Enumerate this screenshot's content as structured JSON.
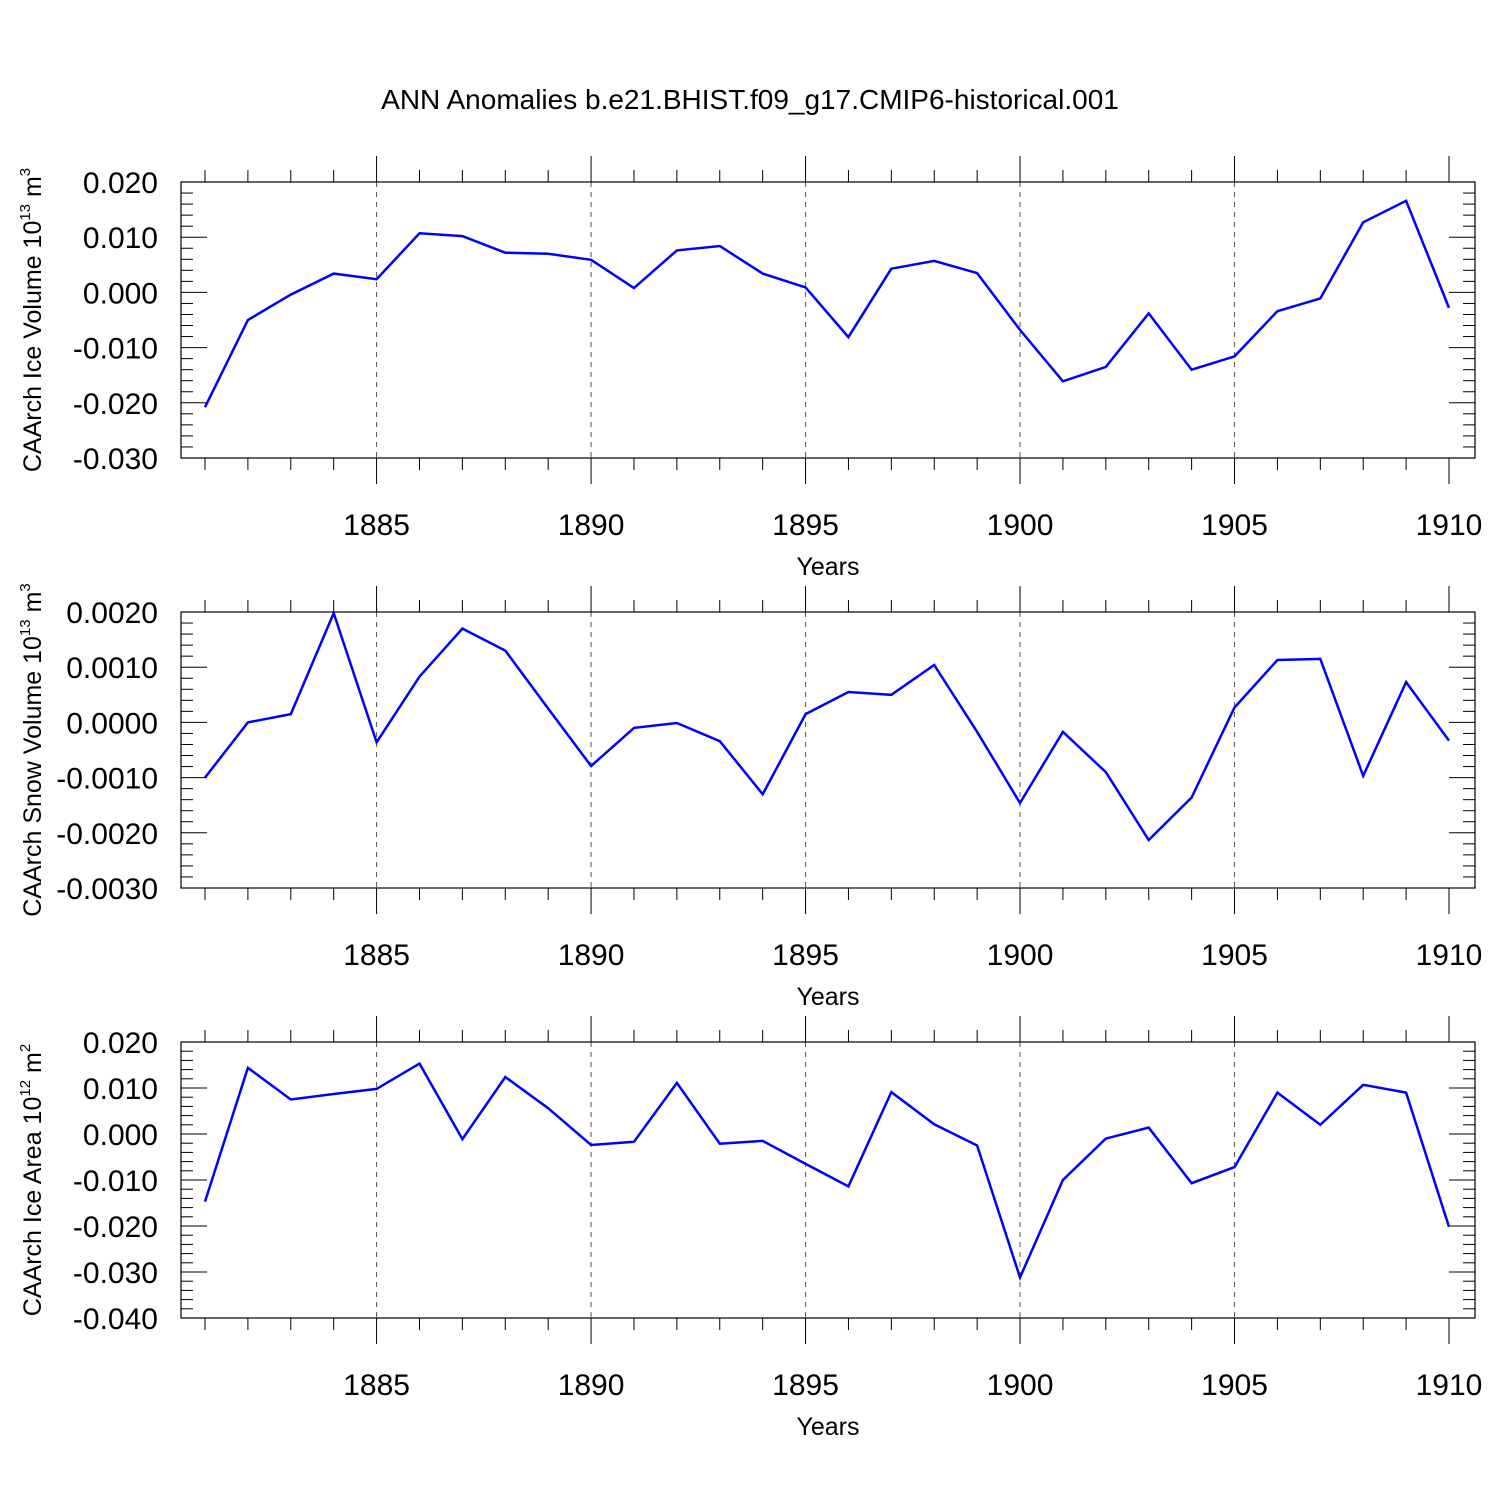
{
  "figure_title": "ANN Anomalies b.e21.BHIST.f09_g17.CMIP6-historical.001",
  "colors": {
    "series": "#0000ff",
    "axis": "#000000",
    "grid": "#555555"
  },
  "chart_data": [
    {
      "type": "line",
      "ylabel": "CAArch Ice Volume 10",
      "ylabel_sup": "13",
      "ylabel_unit": "m",
      "ylabel_unit_sup": "3",
      "xlabel": "Years",
      "xlim": [
        1881,
        1910
      ],
      "ylim": [
        -0.03,
        0.02
      ],
      "x_ticks": [
        1885,
        1890,
        1895,
        1900,
        1905,
        1910
      ],
      "y_ticks": [
        0.02,
        0.01,
        0.0,
        -0.01,
        -0.02,
        -0.03
      ],
      "y_tick_labels": [
        "0.020",
        "0.010",
        "0.000",
        "-0.010",
        "-0.020",
        "-0.030"
      ],
      "grid": "vertical dashed at major x ticks",
      "x": [
        1881,
        1882,
        1883,
        1884,
        1885,
        1886,
        1887,
        1888,
        1889,
        1890,
        1891,
        1892,
        1893,
        1894,
        1895,
        1896,
        1897,
        1898,
        1899,
        1900,
        1901,
        1902,
        1903,
        1904,
        1905,
        1906,
        1907,
        1908,
        1909,
        1910
      ],
      "values": [
        -0.0208,
        -0.005,
        -0.0004,
        0.0034,
        0.0024,
        0.0107,
        0.0102,
        0.0072,
        0.007,
        0.0059,
        0.0008,
        0.0076,
        0.0084,
        0.0034,
        0.0009,
        -0.0081,
        0.0043,
        0.0057,
        0.0035,
        -0.0068,
        -0.0161,
        -0.0135,
        -0.0038,
        -0.014,
        -0.0116,
        -0.0034,
        -0.0011,
        0.0127,
        0.0166,
        -0.0028
      ]
    },
    {
      "type": "line",
      "ylabel": "CAArch Snow Volume 10",
      "ylabel_sup": "13",
      "ylabel_unit": "m",
      "ylabel_unit_sup": "3",
      "xlabel": "Years",
      "xlim": [
        1881,
        1910
      ],
      "ylim": [
        -0.003,
        0.002
      ],
      "x_ticks": [
        1885,
        1890,
        1895,
        1900,
        1905,
        1910
      ],
      "y_ticks": [
        0.002,
        0.001,
        0.0,
        -0.001,
        -0.002,
        -0.003
      ],
      "y_tick_labels": [
        "0.0020",
        "0.0010",
        "0.0000",
        "-0.0010",
        "-0.0020",
        "-0.0030"
      ],
      "grid": "vertical dashed at major x ticks",
      "x": [
        1881,
        1882,
        1883,
        1884,
        1885,
        1886,
        1887,
        1888,
        1889,
        1890,
        1891,
        1892,
        1893,
        1894,
        1895,
        1896,
        1897,
        1898,
        1899,
        1900,
        1901,
        1902,
        1903,
        1904,
        1905,
        1906,
        1907,
        1908,
        1909,
        1910
      ],
      "values": [
        -0.001,
        0.0,
        0.00015,
        0.00198,
        -0.00036,
        0.00083,
        0.0017,
        0.0013,
        0.00025,
        -0.00079,
        -0.0001,
        -1e-05,
        -0.00034,
        -0.0013,
        0.00015,
        0.00055,
        0.0005,
        0.00104,
        -0.00017,
        -0.00146,
        -0.00017,
        -0.0009,
        -0.00213,
        -0.00136,
        0.00027,
        0.00113,
        0.00115,
        -0.00097,
        0.00073,
        -0.00033
      ]
    },
    {
      "type": "line",
      "ylabel": "CAArch Ice Area 10",
      "ylabel_sup": "12",
      "ylabel_unit": "m",
      "ylabel_unit_sup": "2",
      "xlabel": "Years",
      "xlim": [
        1881,
        1910
      ],
      "ylim": [
        -0.04,
        0.02
      ],
      "x_ticks": [
        1885,
        1890,
        1895,
        1900,
        1905,
        1910
      ],
      "y_ticks": [
        0.02,
        0.01,
        0.0,
        -0.01,
        -0.02,
        -0.03,
        -0.04
      ],
      "y_tick_labels": [
        "0.020",
        "0.010",
        "0.000",
        "-0.010",
        "-0.020",
        "-0.030",
        "-0.040"
      ],
      "grid": "vertical dashed at major x ticks",
      "x": [
        1881,
        1882,
        1883,
        1884,
        1885,
        1886,
        1887,
        1888,
        1889,
        1890,
        1891,
        1892,
        1893,
        1894,
        1895,
        1896,
        1897,
        1898,
        1899,
        1900,
        1901,
        1902,
        1903,
        1904,
        1905,
        1906,
        1907,
        1908,
        1909,
        1910
      ],
      "values": [
        -0.0147,
        0.0144,
        0.0075,
        0.0087,
        0.0098,
        0.0153,
        -0.0011,
        0.0124,
        0.0056,
        -0.0024,
        -0.0017,
        0.0111,
        -0.0021,
        -0.0015,
        -0.0065,
        -0.0114,
        0.0091,
        0.0021,
        -0.0025,
        -0.0312,
        -0.01,
        -0.001,
        0.0014,
        -0.0107,
        -0.0072,
        0.009,
        0.002,
        0.0107,
        0.009,
        -0.0202
      ]
    }
  ]
}
